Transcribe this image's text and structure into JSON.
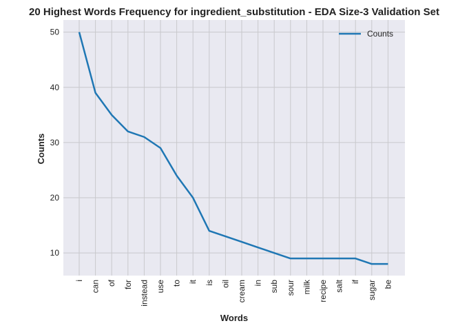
{
  "chart_data": {
    "type": "line",
    "title": "20 Highest Words Frequency for ingredient_substitution - EDA Size-3 Validation Set",
    "xlabel": "Words",
    "ylabel": "Counts",
    "categories": [
      "i",
      "can",
      "of",
      "for",
      "instead",
      "use",
      "to",
      "it",
      "is",
      "oil",
      "cream",
      "in",
      "sub",
      "sour",
      "milk",
      "recipe",
      "salt",
      "if",
      "sugar",
      "be"
    ],
    "series": [
      {
        "name": "Counts",
        "values": [
          50,
          39,
          35,
          32,
          31,
          29,
          24,
          20,
          14,
          13,
          12,
          11,
          10,
          9,
          9,
          9,
          9,
          9,
          8,
          8
        ]
      }
    ],
    "ylim": [
      5.9,
      52.2
    ],
    "yticks": [
      10,
      20,
      30,
      40,
      50
    ],
    "grid": true,
    "legend": "top-right",
    "colors": {
      "series": "#1f77b4",
      "background": "#e9e9f1",
      "grid": "#c8c8cc"
    }
  }
}
